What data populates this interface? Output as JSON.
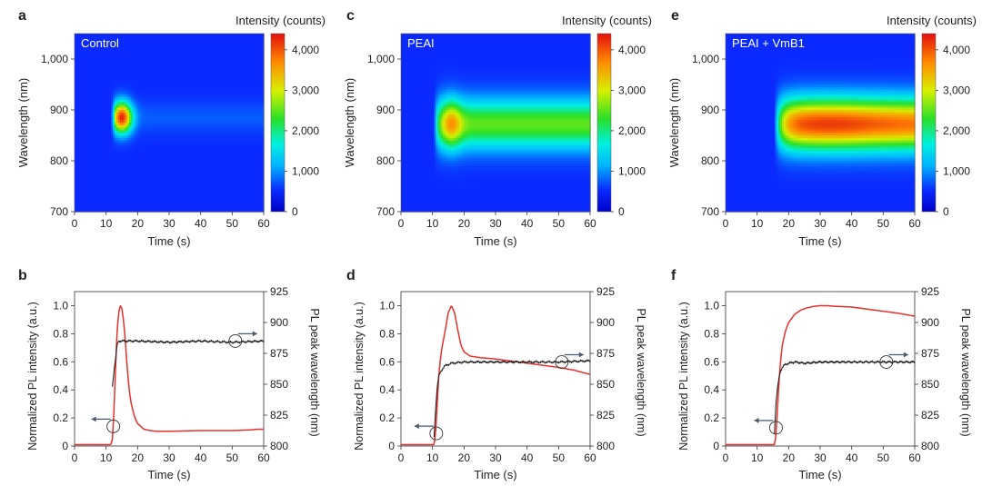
{
  "figure": {
    "heatmap_xlabel": "Time (s)",
    "heatmap_ylabel": "Wavelength (nm)",
    "colorbar_label": "Intensity (counts)",
    "line_xlabel": "Time (s)",
    "line_ylabel_left": "Normalized PL intensity (a.u.)",
    "line_ylabel_right": "PL peak wavelength (nm)"
  },
  "colors": {
    "intensity_line": "#e8302a",
    "wavelength_line": "#222222",
    "arrow": "#4a5a6e",
    "heatmap_bg": "#0a1be6"
  },
  "chart_data": [
    {
      "panel": "a",
      "type": "heatmap",
      "title": "Control",
      "xlabel": "Time (s)",
      "ylabel": "Wavelength (nm)",
      "xlim": [
        0,
        60
      ],
      "ylim": [
        700,
        1050
      ],
      "xticks": [
        "0",
        "10",
        "20",
        "30",
        "40",
        "50",
        "60"
      ],
      "yticks": [
        "700",
        "800",
        "900",
        "1,000"
      ],
      "colorbar": {
        "label": "Intensity (counts)",
        "range": [
          0,
          4400
        ],
        "ticks": [
          "0",
          "1,000",
          "2,000",
          "3,000",
          "4,000"
        ]
      },
      "features": {
        "onset_s": 11.5,
        "peak_time_s": 15,
        "center_nm": 885,
        "peak_counts": 4300,
        "plateau_counts": 250
      }
    },
    {
      "panel": "c",
      "type": "heatmap",
      "title": "PEAI",
      "xlabel": "Time (s)",
      "ylabel": "Wavelength (nm)",
      "xlim": [
        0,
        60
      ],
      "ylim": [
        700,
        1050
      ],
      "xticks": [
        "0",
        "10",
        "20",
        "30",
        "40",
        "50",
        "60"
      ],
      "yticks": [
        "700",
        "800",
        "900",
        "1,000"
      ],
      "colorbar": {
        "label": "Intensity (counts)",
        "range": [
          0,
          4400
        ],
        "ticks": [
          "0",
          "1,000",
          "2,000",
          "3,000",
          "4,000"
        ]
      },
      "features": {
        "onset_s": 10.5,
        "peak_time_s": 16,
        "center_nm": 872,
        "peak_counts": 3600,
        "plateau_counts": 2250
      }
    },
    {
      "panel": "e",
      "type": "heatmap",
      "title": "PEAI + VmB1",
      "xlabel": "Time (s)",
      "ylabel": "Wavelength (nm)",
      "xlim": [
        0,
        60
      ],
      "ylim": [
        700,
        1050
      ],
      "xticks": [
        "0",
        "10",
        "20",
        "30",
        "40",
        "50",
        "60"
      ],
      "yticks": [
        "700",
        "800",
        "900",
        "1,000"
      ],
      "colorbar": {
        "label": "Intensity (counts)",
        "range": [
          0,
          4400
        ],
        "ticks": [
          "0",
          "1,000",
          "2,000",
          "3,000",
          "4,000"
        ]
      },
      "features": {
        "onset_s": 15.5,
        "peak_time_s": 32,
        "center_nm": 872,
        "peak_counts": 3900,
        "plateau_counts": 3700
      }
    },
    {
      "panel": "b",
      "type": "line",
      "xlabel": "Time (s)",
      "ylabel": "Normalized PL intensity (a.u.)",
      "ylabel_right": "PL peak wavelength (nm)",
      "xlim": [
        0,
        60
      ],
      "ylim": [
        0,
        1.1
      ],
      "ylim_right": [
        800,
        925
      ],
      "xticks": [
        "0",
        "10",
        "20",
        "30",
        "40",
        "50",
        "60"
      ],
      "yticks": [
        "0",
        "0.2",
        "0.4",
        "0.6",
        "0.8",
        "1.0"
      ],
      "yticks_right": [
        "800",
        "825",
        "850",
        "875",
        "900",
        "925"
      ],
      "series": [
        {
          "name": "Normalized PL intensity",
          "axis": "left",
          "color": "#e8302a",
          "x": [
            0,
            11.5,
            12,
            12.5,
            13,
            13.5,
            14,
            14.5,
            15,
            15.5,
            16,
            16.5,
            17,
            17.5,
            18,
            19,
            20,
            21,
            22,
            24,
            26,
            30,
            40,
            50,
            56,
            58,
            60
          ],
          "y": [
            0.01,
            0.01,
            0.05,
            0.25,
            0.55,
            0.82,
            0.95,
            1.0,
            0.98,
            0.9,
            0.78,
            0.62,
            0.48,
            0.37,
            0.3,
            0.21,
            0.16,
            0.14,
            0.12,
            0.11,
            0.105,
            0.105,
            0.11,
            0.11,
            0.115,
            0.12,
            0.12
          ]
        },
        {
          "name": "PL peak wavelength",
          "axis": "right",
          "color": "#222222",
          "x": [
            12,
            12.3,
            12.6,
            13,
            13.3,
            13.6,
            14,
            15,
            20,
            30,
            40,
            50,
            60
          ],
          "y": [
            848,
            855,
            863,
            870,
            878,
            883,
            885,
            885,
            885,
            884,
            885,
            884,
            885
          ]
        }
      ],
      "arrows": [
        {
          "direction": "left",
          "target_axis": "left",
          "circle_at": [
            12.3,
            0.14
          ]
        },
        {
          "direction": "right",
          "target_axis": "right",
          "circle_at": [
            51,
            885
          ]
        }
      ]
    },
    {
      "panel": "d",
      "type": "line",
      "xlabel": "Time (s)",
      "ylabel": "Normalized PL intensity (a.u.)",
      "ylabel_right": "PL peak wavelength (nm)",
      "xlim": [
        0,
        60
      ],
      "ylim": [
        0,
        1.1
      ],
      "ylim_right": [
        800,
        925
      ],
      "xticks": [
        "0",
        "10",
        "20",
        "30",
        "40",
        "50",
        "60"
      ],
      "yticks": [
        "0",
        "0.2",
        "0.4",
        "0.6",
        "0.8",
        "1.0"
      ],
      "yticks_right": [
        "800",
        "825",
        "850",
        "875",
        "900",
        "925"
      ],
      "series": [
        {
          "name": "Normalized PL intensity",
          "axis": "left",
          "color": "#e8302a",
          "x": [
            0,
            10.5,
            11,
            11.5,
            12,
            12.5,
            13,
            14,
            15,
            16,
            17,
            18,
            19,
            20,
            22,
            25,
            30,
            40,
            50,
            55,
            60
          ],
          "y": [
            0.01,
            0.01,
            0.1,
            0.3,
            0.5,
            0.62,
            0.7,
            0.82,
            0.95,
            1.0,
            0.95,
            0.83,
            0.72,
            0.67,
            0.64,
            0.63,
            0.62,
            0.59,
            0.56,
            0.54,
            0.51
          ]
        },
        {
          "name": "PL peak wavelength",
          "axis": "right",
          "color": "#222222",
          "x": [
            10.5,
            11,
            11.5,
            12,
            13,
            14,
            16,
            20,
            30,
            40,
            50,
            60
          ],
          "y": [
            807,
            830,
            848,
            857,
            862,
            865,
            867,
            868,
            868,
            868,
            868,
            869
          ]
        }
      ],
      "arrows": [
        {
          "direction": "left",
          "target_axis": "left",
          "circle_at": [
            11.2,
            0.09
          ]
        },
        {
          "direction": "right",
          "target_axis": "right",
          "circle_at": [
            51,
            868
          ]
        }
      ]
    },
    {
      "panel": "f",
      "type": "line",
      "xlabel": "Time (s)",
      "ylabel": "Normalized PL intensity (a.u.)",
      "ylabel_right": "PL peak wavelength (nm)",
      "xlim": [
        0,
        60
      ],
      "ylim": [
        0,
        1.1
      ],
      "ylim_right": [
        800,
        925
      ],
      "xticks": [
        "0",
        "10",
        "20",
        "30",
        "40",
        "50",
        "60"
      ],
      "yticks": [
        "0",
        "0.2",
        "0.4",
        "0.6",
        "0.8",
        "1.0"
      ],
      "yticks_right": [
        "800",
        "825",
        "850",
        "875",
        "900",
        "925"
      ],
      "series": [
        {
          "name": "Normalized PL intensity",
          "axis": "left",
          "color": "#e8302a",
          "x": [
            0,
            15.5,
            16,
            16.5,
            17,
            17.5,
            18,
            19,
            20,
            22,
            24,
            26,
            28,
            30,
            32,
            35,
            40,
            45,
            50,
            55,
            60
          ],
          "y": [
            0.01,
            0.01,
            0.08,
            0.28,
            0.48,
            0.62,
            0.72,
            0.82,
            0.88,
            0.94,
            0.97,
            0.985,
            0.995,
            1.0,
            1.0,
            0.995,
            0.99,
            0.975,
            0.96,
            0.945,
            0.925
          ]
        },
        {
          "name": "PL peak wavelength",
          "axis": "right",
          "color": "#222222",
          "x": [
            15.5,
            16,
            16.5,
            17,
            17.5,
            18,
            19,
            20,
            22,
            25,
            30,
            40,
            50,
            60
          ],
          "y": [
            810,
            835,
            848,
            856,
            861,
            864,
            866,
            867,
            868,
            867,
            868,
            868,
            868,
            868
          ]
        }
      ],
      "arrows": [
        {
          "direction": "left",
          "target_axis": "left",
          "circle_at": [
            16,
            0.13
          ]
        },
        {
          "direction": "right",
          "target_axis": "right",
          "circle_at": [
            51,
            868
          ]
        }
      ]
    }
  ]
}
